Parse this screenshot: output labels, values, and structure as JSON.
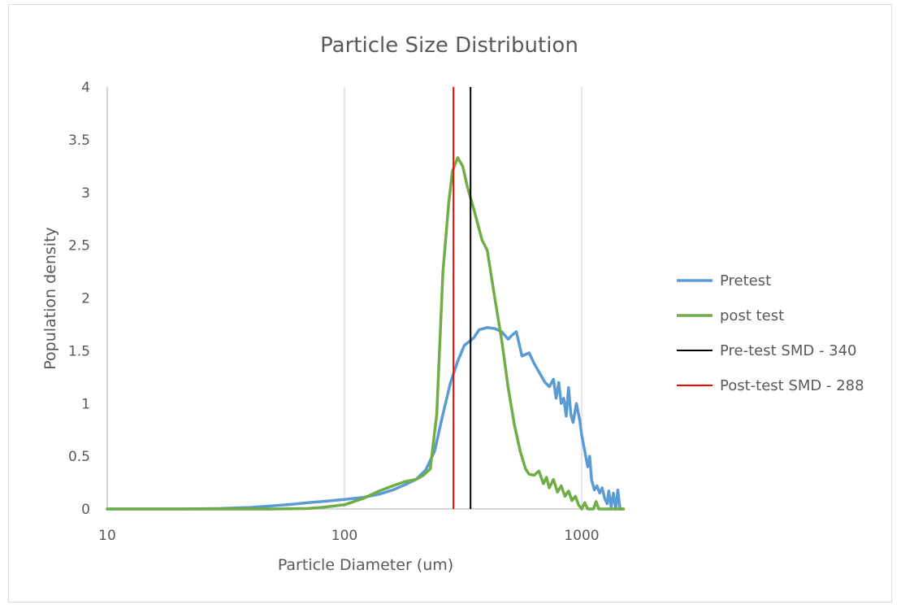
{
  "chart_data": {
    "type": "line",
    "title": "Particle Size Distribution",
    "xlabel": "Particle Diameter (um)",
    "ylabel": "Population density",
    "x_scale": "log",
    "xlim": [
      10,
      1500
    ],
    "ylim": [
      0,
      4
    ],
    "x_ticks": [
      10,
      100,
      1000
    ],
    "x_tick_labels": [
      "10",
      "100",
      "1000"
    ],
    "y_ticks": [
      0,
      0.5,
      1,
      1.5,
      2,
      2.5,
      3,
      3.5,
      4
    ],
    "y_tick_labels": [
      "0",
      "0.5",
      "1",
      "1.5",
      "2",
      "2.5",
      "3",
      "3.5",
      "4"
    ],
    "grid": "vertical major gridlines",
    "legend_position": "right",
    "series": [
      {
        "name": "Pretest",
        "color": "#5b9bd5",
        "points": [
          [
            10,
            0
          ],
          [
            20,
            0
          ],
          [
            30,
            0.005
          ],
          [
            40,
            0.015
          ],
          [
            50,
            0.03
          ],
          [
            60,
            0.045
          ],
          [
            70,
            0.06
          ],
          [
            80,
            0.07
          ],
          [
            100,
            0.09
          ],
          [
            120,
            0.11
          ],
          [
            140,
            0.14
          ],
          [
            160,
            0.18
          ],
          [
            180,
            0.23
          ],
          [
            200,
            0.28
          ],
          [
            220,
            0.37
          ],
          [
            240,
            0.55
          ],
          [
            260,
            0.9
          ],
          [
            280,
            1.2
          ],
          [
            300,
            1.4
          ],
          [
            320,
            1.55
          ],
          [
            350,
            1.62
          ],
          [
            370,
            1.7
          ],
          [
            400,
            1.72
          ],
          [
            430,
            1.71
          ],
          [
            460,
            1.68
          ],
          [
            490,
            1.61
          ],
          [
            510,
            1.65
          ],
          [
            530,
            1.68
          ],
          [
            560,
            1.45
          ],
          [
            600,
            1.48
          ],
          [
            630,
            1.38
          ],
          [
            660,
            1.3
          ],
          [
            700,
            1.2
          ],
          [
            730,
            1.16
          ],
          [
            760,
            1.23
          ],
          [
            780,
            1.05
          ],
          [
            800,
            1.2
          ],
          [
            820,
            1.0
          ],
          [
            840,
            1.05
          ],
          [
            860,
            0.88
          ],
          [
            880,
            1.15
          ],
          [
            900,
            0.9
          ],
          [
            920,
            0.82
          ],
          [
            950,
            1.0
          ],
          [
            980,
            0.85
          ],
          [
            1000,
            0.7
          ],
          [
            1030,
            0.55
          ],
          [
            1060,
            0.4
          ],
          [
            1080,
            0.5
          ],
          [
            1100,
            0.28
          ],
          [
            1130,
            0.18
          ],
          [
            1160,
            0.22
          ],
          [
            1190,
            0.15
          ],
          [
            1220,
            0.2
          ],
          [
            1250,
            0.1
          ],
          [
            1280,
            0.05
          ],
          [
            1300,
            0.17
          ],
          [
            1330,
            0.02
          ],
          [
            1360,
            0.15
          ],
          [
            1390,
            0.0
          ],
          [
            1420,
            0.18
          ],
          [
            1450,
            0
          ],
          [
            1500,
            0
          ]
        ]
      },
      {
        "name": "post test",
        "color": "#70ad47",
        "points": [
          [
            10,
            0
          ],
          [
            50,
            0
          ],
          [
            70,
            0.005
          ],
          [
            80,
            0.015
          ],
          [
            100,
            0.04
          ],
          [
            120,
            0.1
          ],
          [
            140,
            0.17
          ],
          [
            160,
            0.22
          ],
          [
            180,
            0.26
          ],
          [
            200,
            0.28
          ],
          [
            215,
            0.32
          ],
          [
            230,
            0.38
          ],
          [
            245,
            0.9
          ],
          [
            260,
            2.25
          ],
          [
            275,
            2.9
          ],
          [
            285,
            3.2
          ],
          [
            300,
            3.33
          ],
          [
            315,
            3.25
          ],
          [
            330,
            3.05
          ],
          [
            350,
            2.85
          ],
          [
            380,
            2.55
          ],
          [
            400,
            2.45
          ],
          [
            430,
            2.0
          ],
          [
            460,
            1.6
          ],
          [
            490,
            1.15
          ],
          [
            520,
            0.8
          ],
          [
            550,
            0.55
          ],
          [
            580,
            0.38
          ],
          [
            600,
            0.33
          ],
          [
            630,
            0.32
          ],
          [
            660,
            0.36
          ],
          [
            690,
            0.24
          ],
          [
            710,
            0.3
          ],
          [
            730,
            0.2
          ],
          [
            760,
            0.28
          ],
          [
            790,
            0.16
          ],
          [
            820,
            0.22
          ],
          [
            850,
            0.12
          ],
          [
            880,
            0.17
          ],
          [
            910,
            0.08
          ],
          [
            940,
            0.12
          ],
          [
            970,
            0.04
          ],
          [
            1000,
            0
          ],
          [
            1030,
            0.06
          ],
          [
            1060,
            0
          ],
          [
            1120,
            0
          ],
          [
            1150,
            0.07
          ],
          [
            1180,
            0
          ],
          [
            1500,
            0
          ]
        ]
      },
      {
        "name": "Pre-test SMD - 340",
        "color": "#000000",
        "x": 340
      },
      {
        "name": "Post-test SMD - 288",
        "color": "#ff0000",
        "x": 288
      }
    ]
  }
}
